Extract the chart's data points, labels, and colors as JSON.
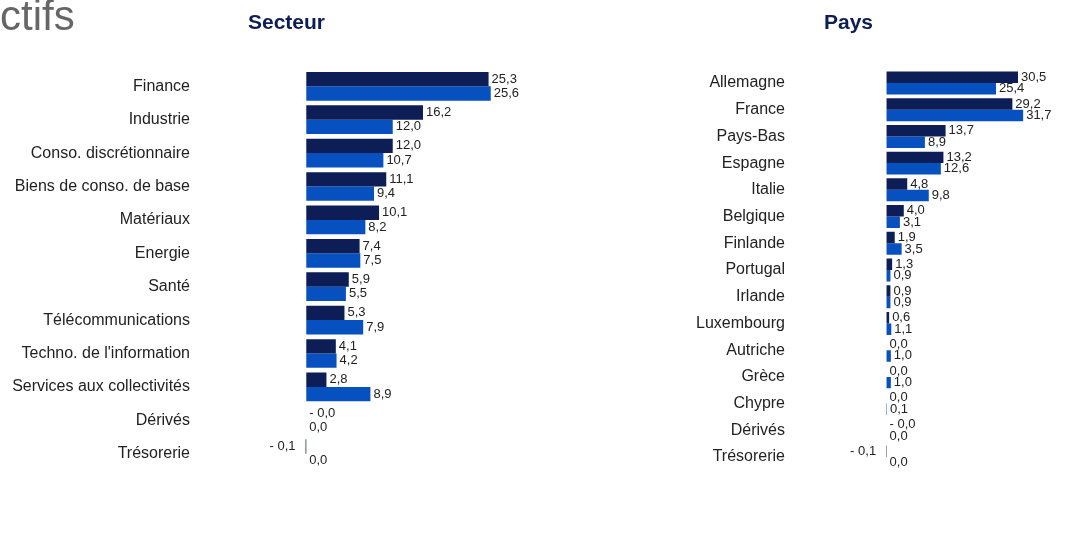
{
  "chart_data": [
    {
      "type": "bar",
      "orientation": "horizontal",
      "title": "Secteur",
      "annotations": [
        "ctifs"
      ],
      "categories": [
        "Finance",
        "Industrie",
        "Conso. discrétionnaire",
        "Biens de conso. de base",
        "Matériaux",
        "Energie",
        "Santé",
        "Télécommunications",
        "Techno. de l'information",
        "Services aux collectivités",
        "Dérivés",
        "Trésorerie"
      ],
      "tick_labels": "y",
      "grid": false,
      "legend": false,
      "series": [
        {
          "color": "#0c1e55",
          "values": [
            25.3,
            16.2,
            12.0,
            11.1,
            10.1,
            7.4,
            5.9,
            5.3,
            4.1,
            2.8,
            0.0,
            -0.1
          ],
          "value_labels": [
            "25,3",
            "16,2",
            "12,0",
            "11,1",
            "10,1",
            "7,4",
            "5,9",
            "5,3",
            "4,1",
            "2,8",
            "- 0,0",
            "- 0,1"
          ]
        },
        {
          "color": "#0750c0",
          "values": [
            25.6,
            12.0,
            10.7,
            9.4,
            8.2,
            7.5,
            5.5,
            7.9,
            4.2,
            8.9,
            0.0,
            0.0
          ],
          "value_labels": [
            "25,6",
            "12,0",
            "10,7",
            "9,4",
            "8,2",
            "7,5",
            "5,5",
            "7,9",
            "4,2",
            "8,9",
            "0,0",
            "0,0"
          ]
        }
      ]
    },
    {
      "type": "bar",
      "orientation": "horizontal",
      "title": "Pays",
      "categories": [
        "Allemagne",
        "France",
        "Pays-Bas",
        "Espagne",
        "Italie",
        "Belgique",
        "Finlande",
        "Portugal",
        "Irlande",
        "Luxembourg",
        "Autriche",
        "Grèce",
        "Chypre",
        "Dérivés",
        "Trésorerie"
      ],
      "tick_labels": "y",
      "grid": false,
      "legend": false,
      "series": [
        {
          "color": "#0c1e55",
          "values": [
            30.5,
            29.2,
            13.7,
            13.2,
            4.8,
            4.0,
            1.9,
            1.3,
            0.9,
            0.6,
            0.0,
            0.0,
            0.0,
            0.0,
            -0.1
          ],
          "value_labels": [
            "30,5",
            "29,2",
            "13,7",
            "13,2",
            "4,8",
            "4,0",
            "1,9",
            "1,3",
            "0,9",
            "0,6",
            "0,0",
            "0,0",
            "0,0",
            "- 0,0",
            "- 0,1"
          ]
        },
        {
          "color": "#0750c0",
          "values": [
            25.4,
            31.7,
            8.9,
            12.6,
            9.8,
            3.1,
            3.5,
            0.9,
            0.9,
            1.1,
            1.0,
            1.0,
            0.1,
            0.0,
            0.0
          ],
          "value_labels": [
            "25,4",
            "31,7",
            "8,9",
            "12,6",
            "9,8",
            "3,1",
            "3,5",
            "0,9",
            "0,9",
            "1,1",
            "1,0",
            "1,0",
            "0,1",
            "0,0",
            "0,0"
          ]
        }
      ]
    }
  ]
}
